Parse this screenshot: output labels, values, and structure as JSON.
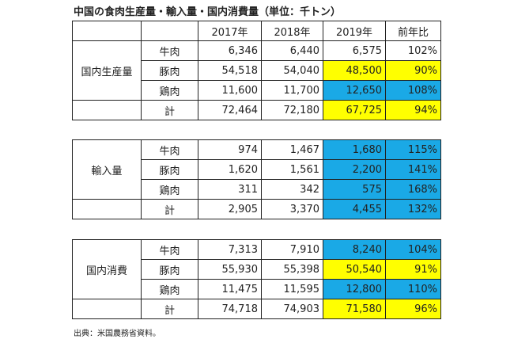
{
  "title": "中国の食肉生産量・輸入量・国内消費量（単位：千トン）",
  "header": [
    "2017年",
    "2018年",
    "2019年",
    "前年比"
  ],
  "highlight_colors": {
    "yellow": "#ffff00",
    "blue": "#1aa9e6"
  },
  "tables": [
    {
      "group": "国内生産量",
      "rows": [
        {
          "label": "牛肉",
          "values": [
            "6,346",
            "6,440",
            "6,575",
            "102%"
          ],
          "highlight": null
        },
        {
          "label": "豚肉",
          "values": [
            "54,518",
            "54,040",
            "48,500",
            "90%"
          ],
          "highlight": "yellow"
        },
        {
          "label": "鶏肉",
          "values": [
            "11,600",
            "11,700",
            "12,650",
            "108%"
          ],
          "highlight": "blue"
        },
        {
          "label": "計",
          "values": [
            "72,464",
            "72,180",
            "67,725",
            "94%"
          ],
          "highlight": "yellow"
        }
      ]
    },
    {
      "group": "輸入量",
      "rows": [
        {
          "label": "牛肉",
          "values": [
            "974",
            "1,467",
            "1,680",
            "115%"
          ],
          "highlight": "blue"
        },
        {
          "label": "豚肉",
          "values": [
            "1,620",
            "1,561",
            "2,200",
            "141%"
          ],
          "highlight": "blue"
        },
        {
          "label": "鶏肉",
          "values": [
            "311",
            "342",
            "575",
            "168%"
          ],
          "highlight": "blue"
        },
        {
          "label": "計",
          "values": [
            "2,905",
            "3,370",
            "4,455",
            "132%"
          ],
          "highlight": "blue"
        }
      ]
    },
    {
      "group": "国内消費",
      "rows": [
        {
          "label": "牛肉",
          "values": [
            "7,313",
            "7,910",
            "8,240",
            "104%"
          ],
          "highlight": "blue"
        },
        {
          "label": "豚肉",
          "values": [
            "55,930",
            "55,398",
            "50,540",
            "91%"
          ],
          "highlight": "yellow"
        },
        {
          "label": "鶏肉",
          "values": [
            "11,475",
            "11,595",
            "12,800",
            "110%"
          ],
          "highlight": "blue"
        },
        {
          "label": "計",
          "values": [
            "74,718",
            "74,903",
            "71,580",
            "96%"
          ],
          "highlight": "yellow"
        }
      ]
    }
  ],
  "source": "出典：米国農務省資料。"
}
